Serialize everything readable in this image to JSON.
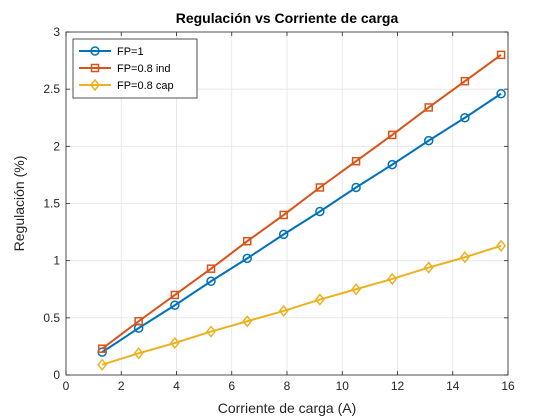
{
  "chart_data": {
    "type": "line",
    "title": "Regulación vs Corriente de carga",
    "xlabel": "Corriente de carga (A)",
    "ylabel": "Regulación (%)",
    "xlim": [
      0,
      16
    ],
    "ylim": [
      0,
      3
    ],
    "xticks": [
      0,
      2,
      4,
      6,
      8,
      10,
      12,
      14,
      16
    ],
    "yticks": [
      0,
      0.5,
      1,
      1.5,
      2,
      2.5,
      3
    ],
    "grid": true,
    "legend_position": "top-left",
    "x": [
      1.31,
      2.63,
      3.94,
      5.25,
      6.56,
      7.88,
      9.19,
      10.5,
      11.81,
      13.13,
      14.44,
      15.75
    ],
    "series": [
      {
        "name": "FP=1",
        "color": "#0072BD",
        "marker": "circle",
        "values": [
          0.2,
          0.41,
          0.61,
          0.82,
          1.02,
          1.23,
          1.43,
          1.64,
          1.84,
          2.05,
          2.25,
          2.46
        ]
      },
      {
        "name": "FP=0.8 ind",
        "color": "#D95319",
        "marker": "square",
        "values": [
          0.23,
          0.47,
          0.7,
          0.93,
          1.17,
          1.4,
          1.64,
          1.87,
          2.1,
          2.34,
          2.57,
          2.8
        ]
      },
      {
        "name": "FP=0.8 cap",
        "color": "#EDB120",
        "marker": "diamond",
        "values": [
          0.09,
          0.19,
          0.28,
          0.38,
          0.47,
          0.56,
          0.66,
          0.75,
          0.84,
          0.94,
          1.03,
          1.13
        ]
      }
    ]
  }
}
